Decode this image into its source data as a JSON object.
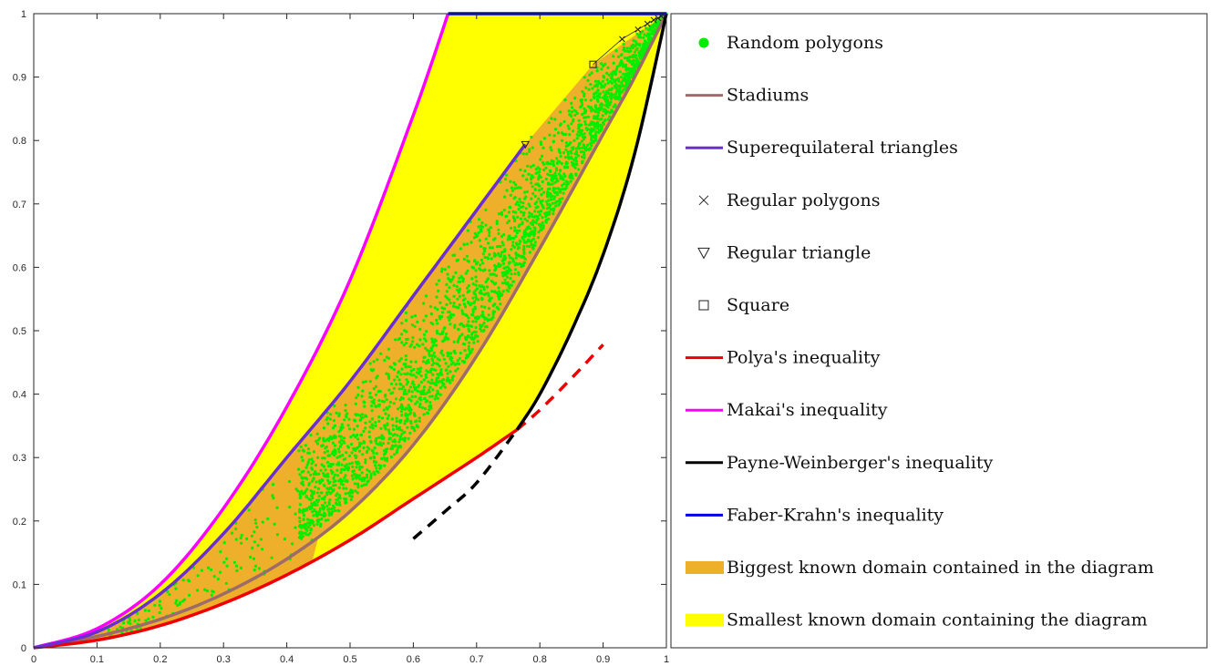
{
  "chart_data": {
    "type": "scatter",
    "title": "",
    "xlabel": "",
    "ylabel": "",
    "xlim": [
      0,
      1
    ],
    "ylim": [
      0,
      1
    ],
    "grid": false,
    "legend_placement": "right",
    "x_ticks": [
      "0",
      "0.1",
      "0.2",
      "0.3",
      "0.4",
      "0.5",
      "0.6",
      "0.7",
      "0.8",
      "0.9",
      "1"
    ],
    "y_ticks": [
      "0",
      "0.1",
      "0.2",
      "0.3",
      "0.4",
      "0.5",
      "0.6",
      "0.7",
      "0.8",
      "0.9",
      "1"
    ],
    "series": [
      {
        "name": "Random polygons",
        "kind": "points",
        "color": "#00ee00",
        "description_points": [
          [
            0.12,
            0.02
          ],
          [
            0.16,
            0.03
          ],
          [
            0.18,
            0.05
          ],
          [
            0.22,
            0.08
          ],
          [
            0.25,
            0.12
          ],
          [
            0.28,
            0.14
          ],
          [
            0.3,
            0.16
          ],
          [
            0.32,
            0.13
          ],
          [
            0.35,
            0.2
          ],
          [
            0.38,
            0.18
          ],
          [
            0.4,
            0.26
          ],
          [
            0.42,
            0.3
          ],
          [
            0.45,
            0.35
          ],
          [
            0.48,
            0.4
          ],
          [
            0.5,
            0.44
          ],
          [
            0.55,
            0.5
          ],
          [
            0.6,
            0.56
          ],
          [
            0.65,
            0.63
          ],
          [
            0.7,
            0.7
          ],
          [
            0.75,
            0.76
          ],
          [
            0.8,
            0.82
          ],
          [
            0.85,
            0.88
          ],
          [
            0.9,
            0.93
          ],
          [
            0.95,
            0.97
          ]
        ]
      },
      {
        "name": "Stadiums",
        "kind": "line",
        "color": "#9e6b6b",
        "points": [
          [
            0,
            0
          ],
          [
            0.1,
            0.018
          ],
          [
            0.2,
            0.045
          ],
          [
            0.3,
            0.085
          ],
          [
            0.4,
            0.14
          ],
          [
            0.5,
            0.215
          ],
          [
            0.6,
            0.32
          ],
          [
            0.7,
            0.46
          ],
          [
            0.8,
            0.63
          ],
          [
            0.9,
            0.81
          ],
          [
            0.95,
            0.9
          ],
          [
            1,
            1
          ]
        ]
      },
      {
        "name": "Superequilateral triangles",
        "kind": "line",
        "color": "#6a2fd0",
        "points": [
          [
            0,
            0
          ],
          [
            0.1,
            0.025
          ],
          [
            0.2,
            0.085
          ],
          [
            0.3,
            0.18
          ],
          [
            0.4,
            0.3
          ],
          [
            0.5,
            0.42
          ],
          [
            0.6,
            0.555
          ],
          [
            0.7,
            0.69
          ],
          [
            0.777,
            0.794
          ]
        ]
      },
      {
        "name": "Regular polygons",
        "kind": "marker",
        "marker": "x",
        "color": "#222222",
        "points": [
          [
            0.93,
            0.96
          ],
          [
            0.955,
            0.975
          ],
          [
            0.97,
            0.984
          ],
          [
            0.98,
            0.99
          ],
          [
            0.987,
            0.993
          ],
          [
            0.992,
            0.996
          ]
        ]
      },
      {
        "name": "Regular triangle",
        "kind": "marker",
        "marker": "triangle-down",
        "color": "#222222",
        "points": [
          [
            0.777,
            0.794
          ]
        ]
      },
      {
        "name": "Square",
        "kind": "marker",
        "marker": "square",
        "color": "#222222",
        "points": [
          [
            0.884,
            0.92
          ]
        ]
      },
      {
        "name": "Polya's inequality",
        "kind": "line",
        "color": "#ee0000",
        "points": [
          [
            0,
            0
          ],
          [
            0.1,
            0.012
          ],
          [
            0.2,
            0.035
          ],
          [
            0.3,
            0.07
          ],
          [
            0.4,
            0.115
          ],
          [
            0.5,
            0.17
          ],
          [
            0.6,
            0.235
          ],
          [
            0.7,
            0.3
          ],
          [
            0.764,
            0.344
          ]
        ],
        "dashed_points": [
          [
            0.764,
            0.344
          ],
          [
            0.8,
            0.375
          ],
          [
            0.85,
            0.425
          ],
          [
            0.9,
            0.478
          ]
        ]
      },
      {
        "name": "Makai's inequality",
        "kind": "line",
        "color": "#ff00ff",
        "points": [
          [
            0,
            0
          ],
          [
            0.1,
            0.03
          ],
          [
            0.2,
            0.1
          ],
          [
            0.3,
            0.22
          ],
          [
            0.4,
            0.38
          ],
          [
            0.5,
            0.58
          ],
          [
            0.6,
            0.84
          ],
          [
            0.655,
            1
          ]
        ]
      },
      {
        "name": "Payne-Weinberger's inequality",
        "kind": "line",
        "color": "#000000",
        "points": [
          [
            0.764,
            0.344
          ],
          [
            0.8,
            0.4
          ],
          [
            0.85,
            0.5
          ],
          [
            0.9,
            0.62
          ],
          [
            0.95,
            0.78
          ],
          [
            1,
            1
          ]
        ],
        "dashed_points": [
          [
            0.6,
            0.172
          ],
          [
            0.65,
            0.215
          ],
          [
            0.7,
            0.26
          ],
          [
            0.764,
            0.344
          ]
        ]
      },
      {
        "name": "Faber-Krahn's inequality",
        "kind": "line",
        "color": "#0000ee",
        "points": [
          [
            0.655,
            1
          ],
          [
            1,
            1
          ]
        ]
      },
      {
        "name": "Biggest known domain contained in the diagram",
        "kind": "area",
        "color": "#eeb02a"
      },
      {
        "name": "Smallest known domain containing the diagram",
        "kind": "area",
        "color": "#ffff00"
      }
    ]
  }
}
